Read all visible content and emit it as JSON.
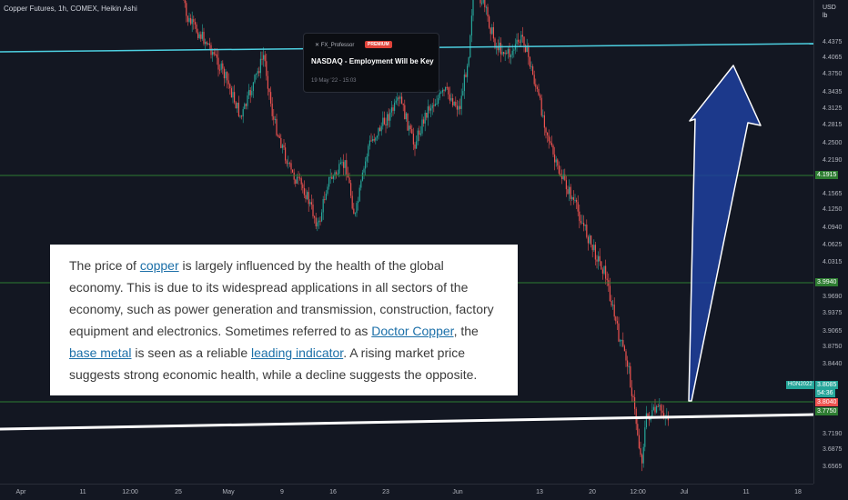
{
  "symbol": {
    "title": "Copper Futures, 1h, COMEX, Heikin Ashi",
    "ticker": "HGN2022"
  },
  "price_axis": {
    "currency": "USD",
    "unit": "lb",
    "ticks": [
      "4.4375",
      "4.4065",
      "4.3750",
      "4.3435",
      "4.3125",
      "4.2815",
      "4.2500",
      "4.2190",
      "4.1565",
      "4.1250",
      "4.0940",
      "4.0625",
      "4.0315",
      "3.9690",
      "3.9375",
      "3.9065",
      "3.8750",
      "3.8440",
      "3.7190",
      "3.6875",
      "3.6565"
    ]
  },
  "price_tags": {
    "level_1": "4.1915",
    "level_2": "3.9940",
    "last_price": "3.8085",
    "countdown": "54:36",
    "current": "3.8040",
    "lower": "3.7750"
  },
  "time_axis": {
    "ticks": [
      "Apr",
      "11",
      "12:00",
      "25",
      "May",
      "9",
      "16",
      "23",
      "Jun",
      "13",
      "20",
      "12:00",
      "Jul",
      "11",
      "18"
    ]
  },
  "news_card": {
    "author": "FX_Professor",
    "badge": "PREMIUM",
    "title": "NASDAQ - Employment Will be Key",
    "date": "19 May '22 - 15:03"
  },
  "article": {
    "parts": [
      {
        "text": "The price of ",
        "link": false
      },
      {
        "text": "copper",
        "link": true
      },
      {
        "text": " is largely influenced by the health of the global economy. This is due to its widespread applications in all sectors of the economy, such as power generation and transmission, construction, factory equipment and electronics. Sometimes referred to as ",
        "link": false
      },
      {
        "text": "Doctor Copper",
        "link": true
      },
      {
        "text": ", the ",
        "link": false
      },
      {
        "text": "base metal",
        "link": true
      },
      {
        "text": " is seen as a reliable ",
        "link": false
      },
      {
        "text": "leading indicator",
        "link": true
      },
      {
        "text": ". A rising market price suggests strong economic health, while a decline suggests the opposite.",
        "link": false
      }
    ]
  },
  "colors": {
    "background": "#131722",
    "bull": "#26a69a",
    "bear": "#ef5350",
    "resistance_line": "#4dd0e1",
    "level_line": "#2e7d32",
    "support_line": "#ffffff",
    "arrow": "#1e3f9e"
  }
}
